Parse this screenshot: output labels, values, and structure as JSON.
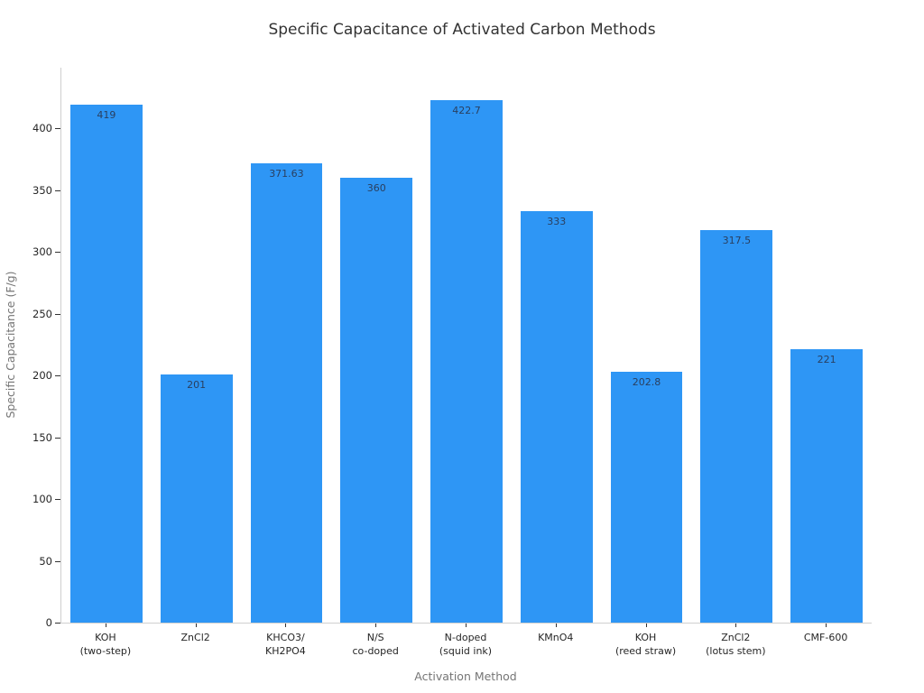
{
  "chart_data": {
    "type": "bar",
    "title": "Specific Capacitance of Activated Carbon Methods",
    "xlabel": "Activation Method",
    "ylabel": "Specific Capacitance (F/g)",
    "categories": [
      [
        "KOH",
        "(two-step)"
      ],
      [
        "ZnCl2"
      ],
      [
        "KHCO3/",
        "KH2PO4"
      ],
      [
        "N/S",
        "co-doped"
      ],
      [
        "N-doped",
        "(squid ink)"
      ],
      [
        "KMnO4"
      ],
      [
        "KOH",
        "(reed straw)"
      ],
      [
        "ZnCl2",
        "(lotus stem)"
      ],
      [
        "CMF-600"
      ]
    ],
    "values": [
      419,
      201,
      371.63,
      360,
      422.7,
      333,
      202.8,
      317.5,
      221
    ],
    "value_labels": [
      "419",
      "201",
      "371.63",
      "360",
      "422.7",
      "333",
      "202.8",
      "317.5",
      "221"
    ],
    "yticks": [
      0,
      50,
      100,
      150,
      200,
      250,
      300,
      350,
      400
    ],
    "ylim": [
      0,
      449
    ],
    "grid": false,
    "legend_position": "none",
    "bar_color": "#2e96f5",
    "value_label_color": "#2a3f5f"
  }
}
